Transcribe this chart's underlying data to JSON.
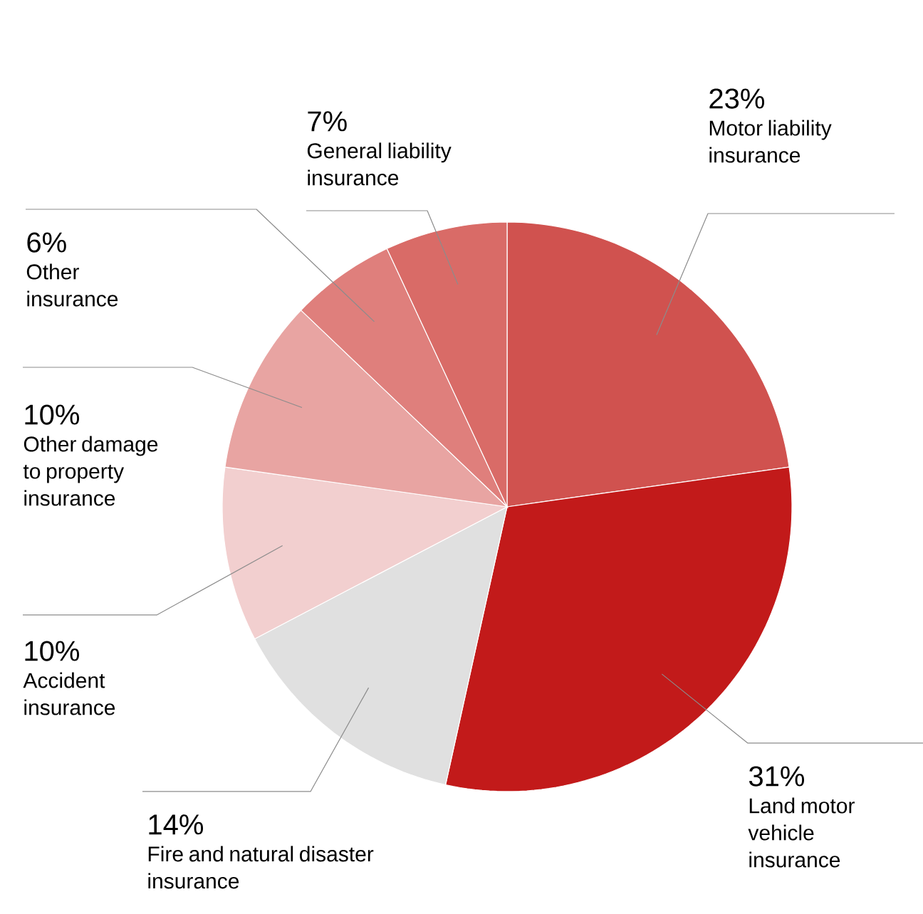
{
  "chart_data": {
    "type": "pie",
    "categories": [
      "Motor liability insurance",
      "Land motor vehicle insurance",
      "Fire and natural disaster insurance",
      "Accident insurance",
      "Other damage to property insurance",
      "Other insurance",
      "General liability insurance"
    ],
    "values": [
      23,
      31,
      14,
      10,
      10,
      6,
      7
    ],
    "value_labels": [
      "23%",
      "31%",
      "14%",
      "10%",
      "10%",
      "6%",
      "7%"
    ],
    "colors": [
      "#d0524f",
      "#c21a1a",
      "#e0e0e0",
      "#f2cfcf",
      "#e8a4a2",
      "#df7f7c",
      "#d96b67"
    ]
  }
}
